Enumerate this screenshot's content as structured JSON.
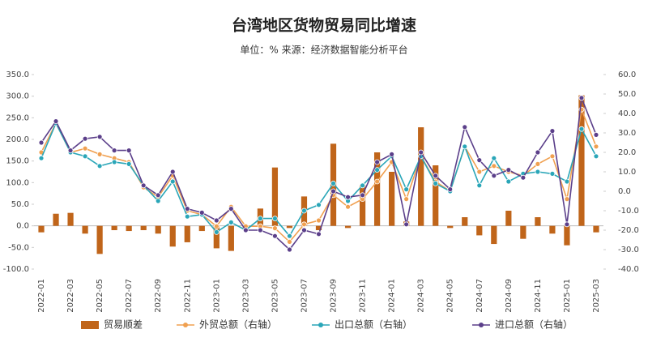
{
  "chart_data": {
    "type": "combo",
    "title": "台湾地区货物贸易同比增速",
    "subtitle": "单位：% 来源：经济数据智能分析平台",
    "categories": [
      "2022-01",
      null,
      "2022-03",
      null,
      "2022-05",
      null,
      "2022-07",
      null,
      "2022-09",
      null,
      "2022-11",
      null,
      "2023-01",
      null,
      "2023-03",
      null,
      "2023-05",
      null,
      "2023-07",
      null,
      "2023-09",
      null,
      "2023-11",
      null,
      "2024-01",
      null,
      "2024-03",
      null,
      "2024-05",
      null,
      "2024-07",
      null,
      "2024-09",
      null,
      "2024-11",
      null,
      "2025-01",
      null,
      "2025-03"
    ],
    "ylim": [
      -100,
      350
    ],
    "yticks": [
      {
        "value": 350,
        "label": "350.0"
      },
      {
        "value": 300,
        "label": "300.0"
      },
      {
        "value": 250,
        "label": "250.0"
      },
      {
        "value": 200,
        "label": "200.0"
      },
      {
        "value": 150,
        "label": "150.0"
      },
      {
        "value": 100,
        "label": "100.0"
      },
      {
        "value": 50,
        "label": "50.0"
      },
      {
        "value": 0,
        "label": "0.0"
      },
      {
        "value": -50,
        "label": "-50.0"
      },
      {
        "value": -100,
        "label": "-100.0"
      }
    ],
    "y2lim": [
      -40,
      60
    ],
    "y2ticks": [
      {
        "value": 60,
        "label": "60.0"
      },
      {
        "value": 50,
        "label": "50.0"
      },
      {
        "value": 40,
        "label": "40.0"
      },
      {
        "value": 30,
        "label": "30.0"
      },
      {
        "value": 20,
        "label": "20.0"
      },
      {
        "value": 10,
        "label": "10.0"
      },
      {
        "value": 0,
        "label": "0.0"
      },
      {
        "value": -10,
        "label": "-10.0"
      },
      {
        "value": -20,
        "label": "-20.0"
      },
      {
        "value": -30,
        "label": "-30.0"
      },
      {
        "value": -40,
        "label": "-40.0"
      }
    ],
    "series": [
      {
        "name": "贸易顺差",
        "type": "bar",
        "color": "#c0651a",
        "values": [
          -15,
          28,
          30,
          -18,
          -65,
          -10,
          -12,
          -10,
          -18,
          -48,
          -38,
          -12,
          -52,
          -58,
          -5,
          40,
          135,
          -5,
          68,
          -10,
          190,
          -5,
          95,
          170,
          125,
          10,
          228,
          140,
          -5,
          20,
          -22,
          -42,
          35,
          -30,
          20,
          -18,
          -45,
          302,
          -15
        ]
      },
      {
        "name": "外贸总额（右轴）",
        "type": "line",
        "axis": "y2",
        "color": "#f0a050",
        "values": [
          20,
          35,
          20,
          22,
          19,
          17,
          15,
          2,
          -3,
          8,
          -10,
          -12,
          -18,
          -8,
          -18,
          -18,
          -19,
          -26,
          -17,
          -15,
          -2,
          -8,
          -4,
          5,
          15,
          -4,
          18,
          5,
          0,
          23,
          10,
          13,
          10,
          8,
          14,
          18,
          -4,
          42,
          23
        ]
      },
      {
        "name": "出口总额（右轴）",
        "type": "line",
        "axis": "y2",
        "color": "#2aa6b8",
        "values": [
          17,
          35,
          20,
          18,
          13,
          15,
          14,
          3,
          -5,
          5,
          -13,
          -12,
          -21,
          -16,
          -20,
          -14,
          -14,
          -23,
          -10,
          -7,
          4,
          -5,
          3,
          11,
          18,
          1,
          18,
          4,
          0,
          23,
          3,
          17,
          5,
          9,
          10,
          9,
          5,
          32,
          18
        ]
      },
      {
        "name": "进口总额（右轴）",
        "type": "line",
        "axis": "y2",
        "color": "#5b3f8a",
        "values": [
          25,
          36,
          21,
          27,
          28,
          21,
          21,
          3,
          -2,
          10,
          -9,
          -11,
          -15,
          -9,
          -20,
          -20,
          -23,
          -30,
          -20,
          -22,
          0,
          -3,
          -2,
          15,
          19,
          -17,
          20,
          8,
          1,
          33,
          16,
          8,
          11,
          7,
          20,
          31,
          -17,
          48,
          29
        ]
      }
    ]
  }
}
